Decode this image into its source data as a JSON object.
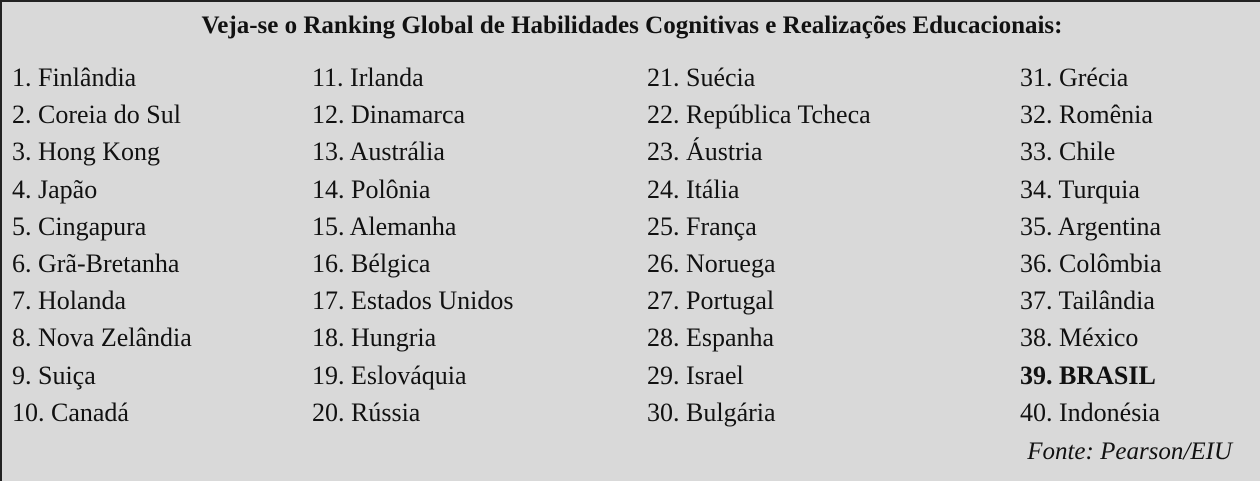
{
  "title": "Veja-se o Ranking Global de Habilidades Cognitivas e Realizações Educacionais:",
  "columns": [
    [
      "1. Finlândia",
      "2. Coreia do Sul",
      "3. Hong Kong",
      "4. Japão",
      "5. Cingapura",
      "6. Grã-Bretanha",
      "7. Holanda",
      "8. Nova Zelândia",
      "9. Suiça",
      "10. Canadá"
    ],
    [
      "11. Irlanda",
      "12. Dinamarca",
      "13. Austrália",
      "14. Polônia",
      "15. Alemanha",
      "16. Bélgica",
      "17. Estados Unidos",
      "18. Hungria",
      "19. Eslováquia",
      "20. Rússia"
    ],
    [
      "21. Suécia",
      "22. República Tcheca",
      "23. Áustria",
      "24. Itália",
      "25. França",
      "26. Noruega",
      "27. Portugal",
      "28. Espanha",
      "29. Israel",
      "30. Bulgária"
    ],
    [
      "31. Grécia",
      "32. Romênia",
      "33. Chile",
      "34. Turquia",
      "35. Argentina",
      "36. Colômbia",
      "37. Tailândia",
      "38. México",
      "39. BRASIL",
      "40. Indonésia"
    ]
  ],
  "highlighted": "39. BRASIL",
  "source": "Fonte: Pearson/EIU"
}
